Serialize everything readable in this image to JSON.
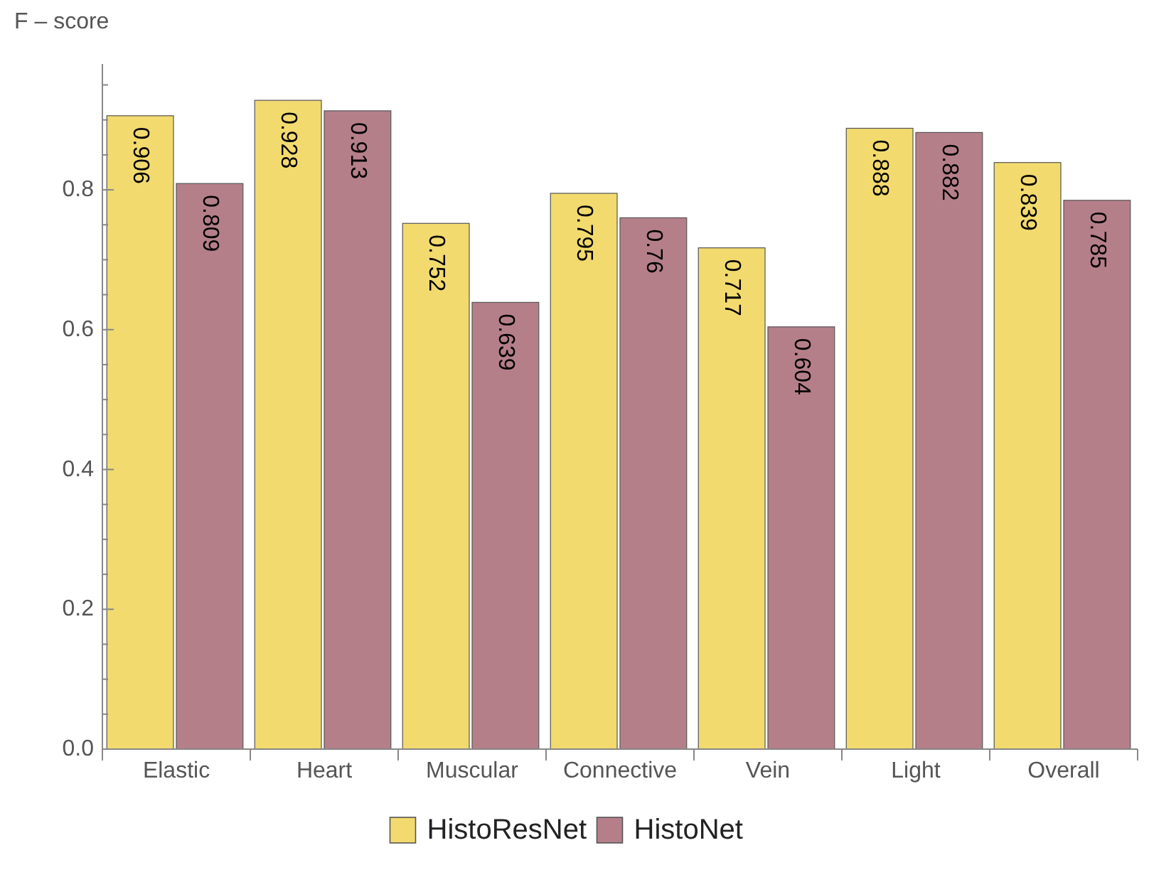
{
  "chart_data": {
    "type": "bar",
    "ylabel": "F – score",
    "categories": [
      "Elastic",
      "Heart",
      "Muscular",
      "Connective",
      "Vein",
      "Light",
      "Overall"
    ],
    "series": [
      {
        "name": "HistoResNet",
        "color": "#f2da6e",
        "values": [
          0.906,
          0.928,
          0.752,
          0.795,
          0.717,
          0.888,
          0.839
        ]
      },
      {
        "name": "HistoNet",
        "color": "#b57f8a",
        "values": [
          0.809,
          0.913,
          0.639,
          0.76,
          0.604,
          0.882,
          0.785
        ]
      }
    ],
    "ylim": [
      0,
      0.98
    ],
    "yticks": [
      {
        "value": 0,
        "label": "0.0"
      },
      {
        "value": 0.05,
        "label": null
      },
      {
        "value": 0.1,
        "label": null
      },
      {
        "value": 0.15,
        "label": null
      },
      {
        "value": 0.2,
        "label": "0.2"
      },
      {
        "value": 0.25,
        "label": null
      },
      {
        "value": 0.3,
        "label": null
      },
      {
        "value": 0.35,
        "label": null
      },
      {
        "value": 0.4,
        "label": "0.4"
      },
      {
        "value": 0.45,
        "label": null
      },
      {
        "value": 0.5,
        "label": null
      },
      {
        "value": 0.55,
        "label": null
      },
      {
        "value": 0.6,
        "label": "0.6"
      },
      {
        "value": 0.65,
        "label": null
      },
      {
        "value": 0.7,
        "label": null
      },
      {
        "value": 0.75,
        "label": null
      },
      {
        "value": 0.8,
        "label": "0.8"
      },
      {
        "value": 0.85,
        "label": null
      },
      {
        "value": 0.9,
        "label": null
      },
      {
        "value": 0.95,
        "label": null
      }
    ],
    "data_labels": true,
    "legend": "bottom",
    "grid": false
  }
}
